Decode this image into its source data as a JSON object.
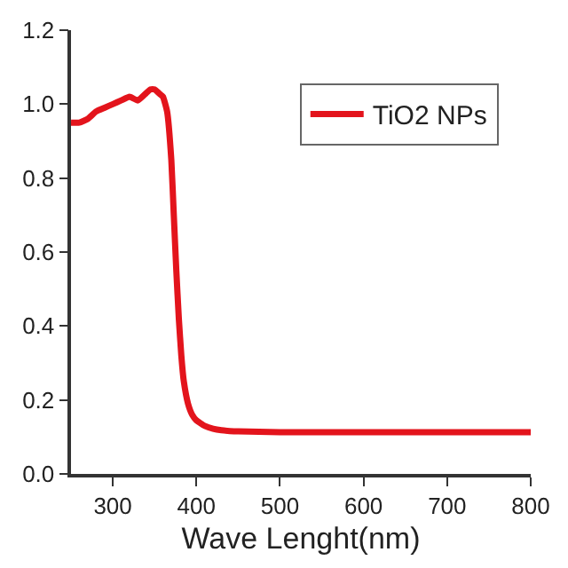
{
  "chart_data": {
    "type": "line",
    "xlabel": "Wave Lenght(nm)",
    "x": [
      250,
      260,
      270,
      280,
      290,
      300,
      310,
      320,
      330,
      340,
      345,
      350,
      355,
      360,
      365,
      370,
      373,
      376,
      379,
      382,
      385,
      390,
      395,
      400,
      410,
      420,
      430,
      440,
      450,
      475,
      500,
      550,
      600,
      650,
      700,
      750,
      800
    ],
    "series": [
      {
        "name": "TiO2 NPs",
        "color": "#e3141c",
        "values": [
          0.95,
          0.95,
          0.96,
          0.98,
          0.99,
          1.0,
          1.01,
          1.02,
          1.01,
          1.03,
          1.04,
          1.04,
          1.03,
          1.02,
          0.98,
          0.85,
          0.7,
          0.55,
          0.42,
          0.32,
          0.25,
          0.19,
          0.16,
          0.145,
          0.13,
          0.122,
          0.118,
          0.116,
          0.115,
          0.114,
          0.113,
          0.113,
          0.113,
          0.113,
          0.113,
          0.113,
          0.113
        ]
      }
    ],
    "xlim": [
      250,
      800
    ],
    "xticks": [
      300,
      400,
      500,
      600,
      700,
      800
    ],
    "ylim": [
      0,
      1.2
    ],
    "yticks": [
      {
        "value": 0,
        "label": "0.0"
      },
      {
        "value": 0.2,
        "label": "0.2"
      },
      {
        "value": 0.4,
        "label": "0.4"
      },
      {
        "value": 0.6,
        "label": "0.6"
      },
      {
        "value": 0.8,
        "label": "0.8"
      },
      {
        "value": 1.0,
        "label": "1.0"
      },
      {
        "value": 1.2,
        "label": "1.2"
      }
    ],
    "legend": "top right",
    "marker": "none",
    "line_style": "solid"
  }
}
